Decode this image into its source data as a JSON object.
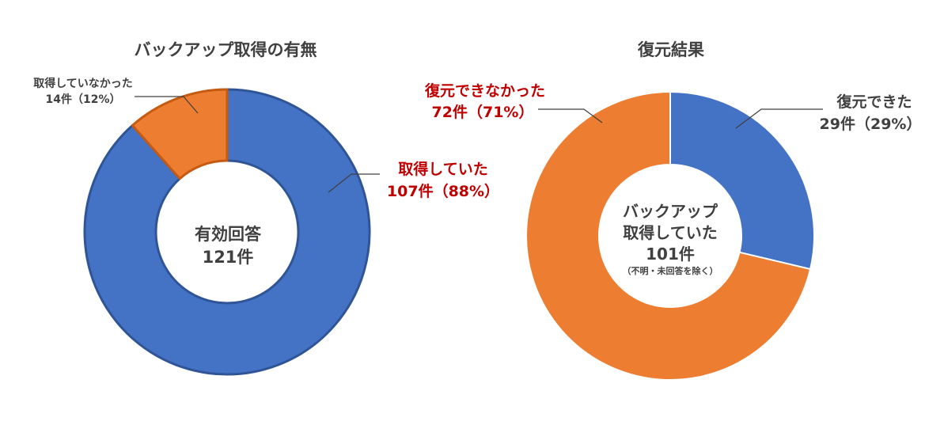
{
  "colors": {
    "blue": "#4472c4",
    "orange": "#ed7d31",
    "text": "#404040",
    "emphasis": "#c00000",
    "leader": "#404040"
  },
  "chart_data": [
    {
      "type": "pie",
      "donut": true,
      "title": "バックアップ取得の有無",
      "slices": [
        {
          "name": "取得していた",
          "value": 107,
          "label_value": "107件（88%）",
          "color": "#4472c4"
        },
        {
          "name": "取得していなかった",
          "value": 14,
          "label_value": "14件（12%）",
          "color": "#ed7d31"
        }
      ],
      "center": {
        "line1": "有効回答",
        "line2": "121件"
      }
    },
    {
      "type": "pie",
      "donut": true,
      "title": "復元結果",
      "slices": [
        {
          "name": "復元できた",
          "value": 29,
          "label_value": "29件（29%）",
          "color": "#4472c4"
        },
        {
          "name": "復元できなかった",
          "value": 72,
          "label_value": "72件（71%）",
          "color": "#ed7d31"
        }
      ],
      "center": {
        "line1": "バックアップ",
        "line2": "取得していた",
        "line3": "101件",
        "note": "（不明・未回答を除く）"
      }
    }
  ]
}
